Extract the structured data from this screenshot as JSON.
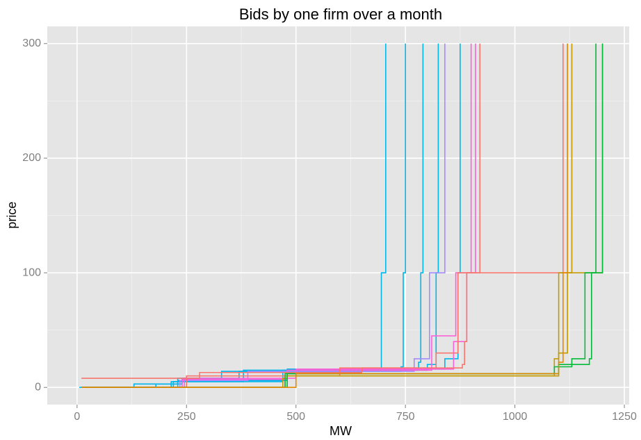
{
  "chart_data": {
    "type": "line",
    "step": "hv",
    "title": "Bids by one firm over a month",
    "x_label": "MW",
    "y_label": "price",
    "xlim": [
      -68,
      1261
    ],
    "ylim": [
      -15,
      315
    ],
    "xticks": [
      0,
      250,
      500,
      750,
      1000,
      1250
    ],
    "yticks": [
      0,
      100,
      200,
      300
    ],
    "xminor": [
      125,
      375,
      625,
      875,
      1125
    ],
    "yminor": [
      50,
      150,
      250
    ],
    "grid": true,
    "background": "#e5e5e5",
    "series": [
      {
        "color": "#00B6EB",
        "x": [
          5,
          130,
          240,
          330,
          690,
          695,
          705
        ],
        "values": [
          0,
          3,
          8,
          14,
          16,
          100,
          300
        ]
      },
      {
        "color": "#00B6EB",
        "x": [
          10,
          180,
          230,
          370,
          740,
          745,
          750
        ],
        "values": [
          0,
          3,
          8,
          14,
          18,
          100,
          300
        ]
      },
      {
        "color": "#00B6EB",
        "x": [
          10,
          215,
          380,
          780,
          785,
          790
        ],
        "values": [
          0,
          5,
          15,
          22,
          100,
          300
        ]
      },
      {
        "color": "#00B6EB",
        "x": [
          10,
          220,
          470,
          800,
          820,
          825
        ],
        "values": [
          0,
          5,
          15,
          20,
          100,
          300
        ]
      },
      {
        "color": "#00B6EB",
        "x": [
          10,
          230,
          480,
          840,
          870,
          875
        ],
        "values": [
          0,
          6,
          16,
          25,
          100,
          300
        ]
      },
      {
        "color": "#A58AFF",
        "x": [
          10,
          235,
          390,
          770,
          805,
          840
        ],
        "values": [
          0,
          6,
          14,
          25,
          100,
          300
        ]
      },
      {
        "color": "#FB61D7",
        "x": [
          10,
          240,
          480,
          810,
          865,
          900
        ],
        "values": [
          0,
          7,
          15,
          45,
          100,
          300
        ]
      },
      {
        "color": "#FB61D7",
        "x": [
          10,
          245,
          500,
          860,
          890,
          910
        ],
        "values": [
          0,
          8,
          16,
          40,
          100,
          300
        ]
      },
      {
        "color": "#F8766D",
        "x": [
          10,
          230,
          280,
          650,
          880,
          885,
          890,
          920
        ],
        "values": [
          8,
          8,
          13,
          17,
          20,
          40,
          100,
          300
        ]
      },
      {
        "color": "#F8766D",
        "x": [
          10,
          250,
          600,
          820,
          870,
          1110
        ],
        "values": [
          0,
          10,
          17,
          30,
          100,
          300
        ]
      },
      {
        "color": "#C49A00",
        "x": [
          10,
          470,
          480,
          1090,
          1100,
          1130
        ],
        "values": [
          0,
          8,
          10,
          25,
          100,
          300
        ]
      },
      {
        "color": "#C49A00",
        "x": [
          15,
          475,
          1100,
          1120,
          1200
        ],
        "values": [
          0,
          10,
          30,
          100,
          300
        ]
      },
      {
        "color": "#00BA38",
        "x": [
          10,
          475,
          1090,
          1130,
          1160,
          1185
        ],
        "values": [
          0,
          12,
          18,
          25,
          100,
          300
        ]
      },
      {
        "color": "#00BA38",
        "x": [
          10,
          480,
          1100,
          1170,
          1175,
          1200
        ],
        "values": [
          0,
          12,
          20,
          25,
          100,
          300
        ]
      },
      {
        "color": "#E58700",
        "x": [
          10,
          500,
          1100,
          1110,
          1120
        ],
        "values": [
          0,
          12,
          22,
          100,
          300
        ]
      }
    ]
  }
}
